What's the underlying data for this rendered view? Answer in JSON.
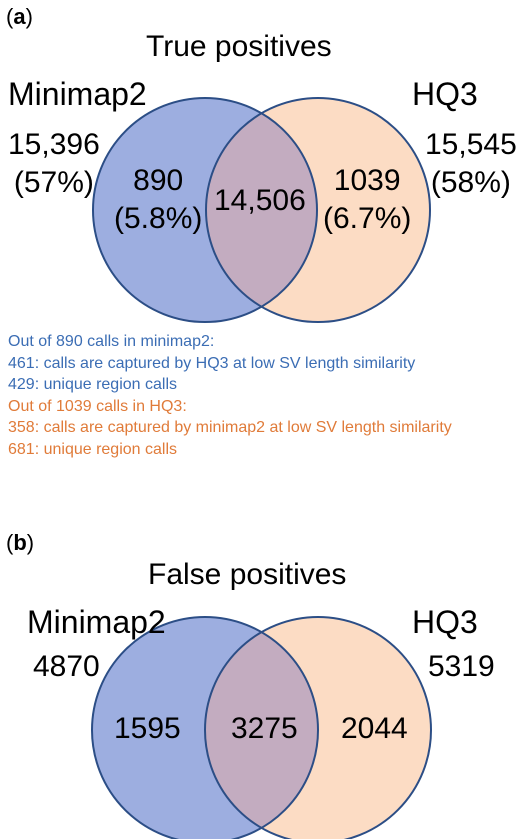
{
  "colors": {
    "set_a_fill": "#9daee0",
    "set_b_fill": "#fcdcc4",
    "overlap_fill": "#c3acc0",
    "circle_stroke": "#2c4e86",
    "note_blue": "#3b6db4",
    "note_orange": "#e07b39"
  },
  "panel_a": {
    "label_open": "(",
    "label_letter": "a",
    "label_close": ")",
    "title": "True positives",
    "set_a_name": "Minimap2",
    "set_b_name": "HQ3",
    "set_a_total": "15,396",
    "set_a_total_pct": "(57%)",
    "set_b_total": "15,545",
    "set_b_total_pct": "(58%)",
    "only_a_count": "890",
    "only_a_pct": "(5.8%)",
    "overlap_count": "14,506",
    "only_b_count": "1039",
    "only_b_pct": "(6.7%)",
    "notes": [
      "Out of 890 calls in minimap2:",
      "461: calls are captured by HQ3 at low SV length similarity",
      "429: unique region calls",
      "Out of 1039 calls in HQ3:",
      "358: calls are captured by minimap2 at low SV length similarity",
      "681: unique region calls"
    ]
  },
  "panel_b": {
    "label_open": "(",
    "label_letter": "b",
    "label_close": ")",
    "title": "False positives",
    "set_a_name": "Minimap2",
    "set_b_name": "HQ3",
    "set_a_total": "4870",
    "set_b_total": "5319",
    "only_a_count": "1595",
    "overlap_count": "3275",
    "only_b_count": "2044"
  }
}
